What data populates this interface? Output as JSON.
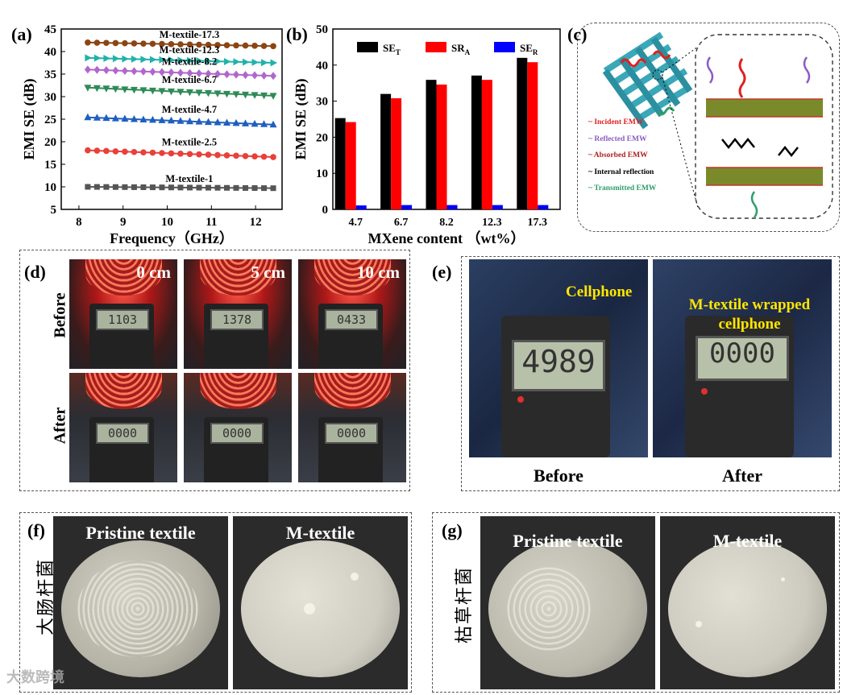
{
  "panels": {
    "a": "(a)",
    "b": "(b)",
    "c": "(c)",
    "d": "(d)",
    "e": "(e)",
    "f": "(f)",
    "g": "(g)"
  },
  "chart_data": [
    {
      "type": "line",
      "panel": "a",
      "xlabel": "Frequency（GHz）",
      "ylabel": "EMI SE (dB)",
      "xlim": [
        7.6,
        12.6
      ],
      "ylim": [
        5,
        45
      ],
      "xticks": [
        8,
        9,
        10,
        11,
        12
      ],
      "yticks": [
        5,
        10,
        15,
        20,
        25,
        30,
        35,
        40,
        45
      ],
      "x": [
        8.2,
        12.4
      ],
      "series": [
        {
          "name": "M-textile-17.3",
          "values": [
            42.0,
            41.2
          ],
          "color": "#8b4513",
          "marker": "circle"
        },
        {
          "name": "M-textile-12.3",
          "values": [
            38.6,
            37.5
          ],
          "color": "#20b2aa",
          "marker": "triangle-right"
        },
        {
          "name": "M-textile-8.2",
          "values": [
            36.0,
            34.6
          ],
          "color": "#b266cc",
          "marker": "diamond"
        },
        {
          "name": "M-textile-6.7",
          "values": [
            32.0,
            30.2
          ],
          "color": "#2e8b57",
          "marker": "triangle-down"
        },
        {
          "name": "M-textile-4.7",
          "values": [
            25.4,
            23.8
          ],
          "color": "#1e5fbf",
          "marker": "triangle-up"
        },
        {
          "name": "M-textile-2.5",
          "values": [
            18.1,
            16.6
          ],
          "color": "#e8403a",
          "marker": "circle"
        },
        {
          "name": "M-textile-1",
          "values": [
            10.0,
            9.7
          ],
          "color": "#555555",
          "marker": "square"
        }
      ]
    },
    {
      "type": "bar",
      "panel": "b",
      "xlabel": "MXene content （wt%）",
      "ylabel": "EMI SE (dB)",
      "ylim": [
        0,
        50
      ],
      "yticks": [
        0,
        10,
        20,
        30,
        40,
        50
      ],
      "categories": [
        "4.7",
        "6.7",
        "8.2",
        "12.3",
        "17.3"
      ],
      "series": [
        {
          "name": "SE",
          "sub": "T",
          "color": "#000000",
          "values": [
            25.3,
            32.0,
            35.9,
            37.1,
            42.0
          ]
        },
        {
          "name": "SR",
          "sub": "A",
          "color": "#ff0000",
          "values": [
            24.2,
            30.8,
            34.6,
            35.9,
            40.8
          ]
        },
        {
          "name": "SE",
          "sub": "R",
          "color": "#0000ff",
          "values": [
            1.1,
            1.2,
            1.2,
            1.2,
            1.2
          ]
        }
      ]
    }
  ],
  "schematic": {
    "legend": [
      "Incident EMW",
      "Reflected EMW",
      "Absorbed EMW",
      "Internal reflection",
      "Transmitted EMW"
    ],
    "legend_colors": [
      "#e02020",
      "#8a5cc4",
      "#b02020",
      "#000000",
      "#2e9e6a"
    ]
  },
  "panel_d": {
    "distances": [
      "0 cm",
      "5 cm",
      "10 cm"
    ],
    "before_label": "Before",
    "after_label": "After",
    "before_readings": [
      "1103",
      "1378",
      "0433"
    ],
    "after_readings": [
      "0000",
      "0000",
      "0000"
    ]
  },
  "panel_e": {
    "before_reading": "4989",
    "after_reading": "0000",
    "before_overlay": "Cellphone",
    "after_overlay": "M-textile wrapped cellphone",
    "before_caption": "Before",
    "after_caption": "After"
  },
  "panel_f": {
    "side_label": "大肠杆菌",
    "left": "Pristine textile",
    "right": "M-textile"
  },
  "panel_g": {
    "side_label": "枯草杆菌",
    "left": "Pristine textile",
    "right": "M-textile"
  },
  "watermark": "大数跨境"
}
